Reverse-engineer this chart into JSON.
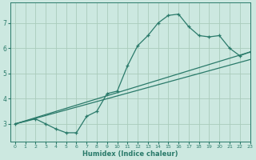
{
  "curve_x": [
    0,
    2,
    3,
    4,
    5,
    6,
    7,
    8,
    9,
    10,
    11,
    12,
    13,
    14,
    15,
    16,
    17,
    18,
    19,
    20,
    21,
    22,
    23
  ],
  "curve_y": [
    3.0,
    3.2,
    3.0,
    2.8,
    2.65,
    2.65,
    3.3,
    3.5,
    4.2,
    4.3,
    5.3,
    6.1,
    6.5,
    7.0,
    7.3,
    7.35,
    6.85,
    6.5,
    6.45,
    6.5,
    6.0,
    5.7,
    5.85
  ],
  "line1_x": [
    0,
    23
  ],
  "line1_y": [
    3.0,
    5.85
  ],
  "line2_x": [
    0,
    23
  ],
  "line2_y": [
    3.0,
    5.55
  ],
  "line_color": "#2a7a6a",
  "curve_color": "#2a7a6a",
  "bg_color": "#cce8e0",
  "grid_color": "#aaccbb",
  "xlabel": "Humidex (Indice chaleur)",
  "xlim": [
    -0.5,
    23
  ],
  "ylim": [
    2.3,
    7.8
  ],
  "yticks": [
    3,
    4,
    5,
    6,
    7
  ],
  "xticks": [
    0,
    1,
    2,
    3,
    4,
    5,
    6,
    7,
    8,
    9,
    10,
    11,
    12,
    13,
    14,
    15,
    16,
    17,
    18,
    19,
    20,
    21,
    22,
    23
  ]
}
